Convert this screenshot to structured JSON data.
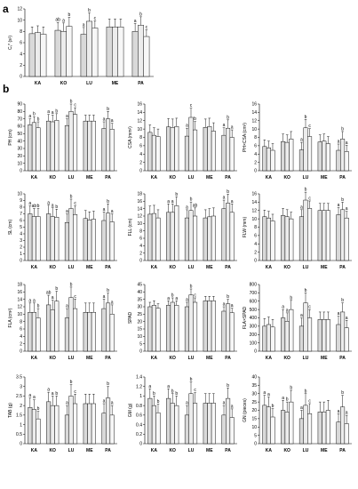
{
  "figure": {
    "panel_a_letter": "a",
    "panel_b_letter": "b"
  },
  "chart_data": [
    {
      "type": "bar",
      "ylabel": "Cᵥ* (s²)",
      "ylim": [
        0,
        12
      ],
      "yticks": [
        0,
        2,
        4,
        6,
        8,
        10,
        12
      ],
      "categories": [
        "KA",
        "KO",
        "LU",
        "ME",
        "PA"
      ],
      "values": [
        [
          7.6,
          7.8,
          7.5
        ],
        [
          8.2,
          8.0,
          8.9
        ],
        [
          7.5,
          9.8,
          8.6
        ],
        [
          8.8,
          8.8,
          8.8
        ],
        [
          8.0,
          9.1,
          7.1
        ]
      ],
      "errors": [
        [
          1.2,
          1.2,
          1.3
        ],
        [
          1.4,
          1.5,
          1.6
        ],
        [
          1.2,
          1.5,
          1.3
        ],
        [
          1.4,
          1.4,
          1.4
        ],
        [
          1.4,
          1.5,
          1.2
        ]
      ],
      "letters": [
        [
          "",
          "",
          ""
        ],
        [
          "ab",
          "a",
          "b"
        ],
        [
          "a",
          "b",
          "c"
        ],
        [
          "",
          "",
          ""
        ],
        [
          "a",
          "b",
          "c"
        ]
      ]
    },
    {
      "type": "bar",
      "ylabel": "PH (cm)",
      "ylim": [
        0,
        90
      ],
      "yticks": [
        0,
        10,
        20,
        30,
        40,
        50,
        60,
        70,
        80,
        90
      ],
      "categories": [
        "KA",
        "KO",
        "LU",
        "ME",
        "PA"
      ],
      "values": [
        [
          62,
          65,
          58
        ],
        [
          67,
          66,
          68
        ],
        [
          61,
          80,
          76
        ],
        [
          67,
          67,
          67
        ],
        [
          57,
          70,
          56
        ]
      ],
      "errors": [
        [
          8,
          8,
          8
        ],
        [
          9,
          9,
          9
        ],
        [
          9,
          10,
          9
        ],
        [
          8,
          8,
          8
        ],
        [
          9,
          10,
          8
        ]
      ],
      "letters": [
        [
          "a",
          "b",
          "b"
        ],
        [
          "a",
          "a",
          "b"
        ],
        [
          "a",
          "b",
          "c"
        ],
        [
          "",
          "",
          ""
        ],
        [
          "a",
          "b",
          "a"
        ]
      ]
    },
    {
      "type": "bar",
      "ylabel": "CSA (mm²)",
      "ylim": [
        0,
        16
      ],
      "yticks": [
        0,
        2,
        4,
        6,
        8,
        10,
        12,
        14,
        16
      ],
      "categories": [
        "KA",
        "KO",
        "LU",
        "ME",
        "PA"
      ],
      "values": [
        [
          9.2,
          8.5,
          8.2
        ],
        [
          10.5,
          10.4,
          10.6
        ],
        [
          8.3,
          12.8,
          9.8
        ],
        [
          10.4,
          10.6,
          9.5
        ],
        [
          8.5,
          10.2,
          8.0
        ]
      ],
      "errors": [
        [
          1.8,
          1.8,
          1.8
        ],
        [
          2.0,
          2.0,
          2.0
        ],
        [
          1.9,
          2.2,
          2.0
        ],
        [
          2.0,
          2.0,
          2.0
        ],
        [
          1.8,
          2.0,
          1.8
        ]
      ],
      "letters": [
        [
          "",
          "",
          ""
        ],
        [
          "",
          "",
          ""
        ],
        [
          "a",
          "c",
          "b"
        ],
        [
          "",
          "",
          ""
        ],
        [
          "a",
          "b",
          "a"
        ]
      ]
    },
    {
      "type": "bar",
      "ylabel": "PH×CSA (cm³)",
      "ylim": [
        0,
        16
      ],
      "yticks": [
        0,
        2,
        4,
        6,
        8,
        10,
        12,
        14,
        16
      ],
      "categories": [
        "KA",
        "KO",
        "LU",
        "ME",
        "PA"
      ],
      "values": [
        [
          5.8,
          5.5,
          4.9
        ],
        [
          7.0,
          6.8,
          7.6
        ],
        [
          5.0,
          10.3,
          8.2
        ],
        [
          6.9,
          7.1,
          6.5
        ],
        [
          4.9,
          7.6,
          4.6
        ]
      ],
      "errors": [
        [
          1.6,
          1.6,
          1.6
        ],
        [
          1.8,
          1.8,
          1.8
        ],
        [
          1.8,
          2.0,
          1.9
        ],
        [
          1.7,
          1.7,
          1.7
        ],
        [
          1.5,
          1.8,
          1.5
        ]
      ],
      "letters": [
        [
          "",
          "",
          ""
        ],
        [
          "",
          "",
          ""
        ],
        [
          "a",
          "b",
          "c"
        ],
        [
          "",
          "",
          ""
        ],
        [
          "a",
          "b",
          "a"
        ]
      ]
    },
    {
      "type": "bar",
      "ylabel": "SL (cm)",
      "ylim": [
        0,
        10
      ],
      "yticks": [
        0,
        1,
        2,
        3,
        4,
        5,
        6,
        7,
        8,
        9,
        10
      ],
      "categories": [
        "KA",
        "KO",
        "LU",
        "ME",
        "PA"
      ],
      "values": [
        [
          7.0,
          6.6,
          6.6
        ],
        [
          7.0,
          6.6,
          6.5
        ],
        [
          5.7,
          7.8,
          6.9
        ],
        [
          6.3,
          6.1,
          6.2
        ],
        [
          6.0,
          7.1,
          5.8
        ]
      ],
      "errors": [
        [
          1.2,
          1.2,
          1.2
        ],
        [
          1.3,
          1.3,
          1.2
        ],
        [
          1.3,
          1.4,
          1.3
        ],
        [
          1.2,
          1.2,
          1.2
        ],
        [
          1.3,
          1.4,
          1.2
        ]
      ],
      "letters": [
        [
          "a",
          "ab",
          "b"
        ],
        [
          "a",
          "a",
          "b"
        ],
        [
          "a",
          "b",
          "c"
        ],
        [
          "",
          "",
          ""
        ],
        [
          "a",
          "b",
          "a"
        ]
      ]
    },
    {
      "type": "bar",
      "ylabel": "FLL (cm)",
      "ylim": [
        0,
        18
      ],
      "yticks": [
        0,
        2,
        4,
        6,
        8,
        10,
        12,
        14,
        16,
        18
      ],
      "categories": [
        "KA",
        "KO",
        "LU",
        "ME",
        "PA"
      ],
      "values": [
        [
          12.5,
          12.7,
          11.5
        ],
        [
          13.0,
          13.0,
          14.8
        ],
        [
          11.5,
          13.5,
          12.0
        ],
        [
          11.5,
          11.8,
          12.0
        ],
        [
          14.0,
          15.5,
          13.0
        ]
      ],
      "errors": [
        [
          2.2,
          2.2,
          2.2
        ],
        [
          2.3,
          2.3,
          2.4
        ],
        [
          2.2,
          2.3,
          2.2
        ],
        [
          2.2,
          2.2,
          2.2
        ],
        [
          2.3,
          2.4,
          2.3
        ]
      ],
      "letters": [
        [
          "",
          "",
          ""
        ],
        [
          "a",
          "a",
          "b"
        ],
        [
          "a",
          "b",
          "ab"
        ],
        [
          "",
          "",
          ""
        ],
        [
          "a",
          "b",
          "a"
        ]
      ]
    },
    {
      "type": "bar",
      "ylabel": "FLW (mm)",
      "ylim": [
        0,
        16
      ],
      "yticks": [
        0,
        2,
        4,
        6,
        8,
        10,
        12,
        14,
        16
      ],
      "categories": [
        "KA",
        "KO",
        "LU",
        "ME",
        "PA"
      ],
      "values": [
        [
          10.5,
          10.2,
          9.5
        ],
        [
          10.8,
          10.5,
          10.0
        ],
        [
          10.5,
          14.5,
          12.5
        ],
        [
          12.0,
          12.0,
          12.0
        ],
        [
          11.0,
          12.2,
          10.2
        ]
      ],
      "errors": [
        [
          1.6,
          1.6,
          1.6
        ],
        [
          1.7,
          1.7,
          1.6
        ],
        [
          1.7,
          1.9,
          1.8
        ],
        [
          1.7,
          1.7,
          1.7
        ],
        [
          1.7,
          1.8,
          1.6
        ]
      ],
      "letters": [
        [
          "",
          "",
          ""
        ],
        [
          "",
          "",
          ""
        ],
        [
          "a",
          "b",
          "c"
        ],
        [
          "",
          "",
          ""
        ],
        [
          "a",
          "b",
          "a"
        ]
      ]
    },
    {
      "type": "bar",
      "ylabel": "FLA (cm²)",
      "ylim": [
        0,
        18
      ],
      "yticks": [
        0,
        2,
        4,
        6,
        8,
        10,
        12,
        14,
        16,
        18
      ],
      "categories": [
        "KA",
        "KO",
        "LU",
        "ME",
        "PA"
      ],
      "values": [
        [
          10.5,
          10.5,
          9.0
        ],
        [
          12.5,
          11.2,
          13.5
        ],
        [
          9.0,
          14.5,
          11.5
        ],
        [
          10.5,
          10.5,
          10.5
        ],
        [
          11.5,
          13.0,
          10.0
        ]
      ],
      "errors": [
        [
          2.5,
          2.5,
          2.5
        ],
        [
          2.6,
          2.6,
          2.7
        ],
        [
          2.5,
          2.8,
          2.6
        ],
        [
          2.5,
          2.5,
          2.5
        ],
        [
          2.6,
          2.7,
          2.5
        ]
      ],
      "letters": [
        [
          "a",
          "a",
          "b"
        ],
        [
          "ab",
          "a",
          "b"
        ],
        [
          "a",
          "b",
          "c"
        ],
        [
          "",
          "",
          ""
        ],
        [
          "a",
          "b",
          "a"
        ]
      ]
    },
    {
      "type": "bar",
      "ylabel": "SPAD",
      "ylim": [
        0,
        45
      ],
      "yticks": [
        0,
        5,
        10,
        15,
        20,
        25,
        30,
        35,
        40,
        45
      ],
      "categories": [
        "KA",
        "KO",
        "LU",
        "ME",
        "PA"
      ],
      "values": [
        [
          30,
          31,
          29
        ],
        [
          31,
          33,
          31
        ],
        [
          30,
          38,
          33
        ],
        [
          34,
          34,
          34
        ],
        [
          27,
          32,
          26
        ]
      ],
      "errors": [
        [
          3,
          3,
          3
        ],
        [
          3,
          3,
          3
        ],
        [
          3,
          4,
          3
        ],
        [
          3,
          3,
          3
        ],
        [
          3,
          3,
          3
        ]
      ],
      "letters": [
        [
          "",
          "",
          ""
        ],
        [
          "a",
          "b",
          "a"
        ],
        [
          "a",
          "b",
          "c"
        ],
        [
          "",
          "",
          ""
        ],
        [
          "a",
          "b",
          "a"
        ]
      ]
    },
    {
      "type": "bar",
      "ylabel": "FLA×SPAD",
      "ylim": [
        0,
        800
      ],
      "yticks": [
        0,
        100,
        200,
        300,
        400,
        500,
        600,
        700,
        800
      ],
      "categories": [
        "KA",
        "KO",
        "LU",
        "ME",
        "PA"
      ],
      "values": [
        [
          300,
          320,
          290
        ],
        [
          400,
          360,
          500
        ],
        [
          300,
          580,
          400
        ],
        [
          380,
          380,
          380
        ],
        [
          320,
          470,
          280
        ]
      ],
      "errors": [
        [
          90,
          90,
          90
        ],
        [
          100,
          100,
          110
        ],
        [
          100,
          120,
          100
        ],
        [
          90,
          90,
          90
        ],
        [
          100,
          110,
          90
        ]
      ],
      "letters": [
        [
          "",
          "",
          ""
        ],
        [
          "a",
          "a",
          "b"
        ],
        [
          "a",
          "b",
          "c"
        ],
        [
          "",
          "",
          ""
        ],
        [
          "a",
          "b",
          "a"
        ]
      ]
    },
    {
      "type": "bar",
      "ylabel": "TAB (g)",
      "ylim": [
        0,
        3.5
      ],
      "yticks": [
        0,
        0.5,
        1,
        1.5,
        2,
        2.5,
        3,
        3.5
      ],
      "categories": [
        "KA",
        "KO",
        "LU",
        "ME",
        "PA"
      ],
      "values": [
        [
          1.9,
          1.8,
          1.3
        ],
        [
          2.2,
          2.0,
          2.0
        ],
        [
          1.5,
          2.5,
          2.1
        ],
        [
          2.1,
          2.1,
          2.1
        ],
        [
          1.6,
          2.4,
          1.5
        ]
      ],
      "errors": [
        [
          0.5,
          0.5,
          0.4
        ],
        [
          0.5,
          0.5,
          0.5
        ],
        [
          0.5,
          0.6,
          0.5
        ],
        [
          0.5,
          0.5,
          0.5
        ],
        [
          0.5,
          0.6,
          0.5
        ]
      ],
      "letters": [
        [
          "a",
          "a",
          "b"
        ],
        [
          "a",
          "a",
          "b"
        ],
        [
          "a",
          "b",
          "c"
        ],
        [
          "",
          "",
          ""
        ],
        [
          "a",
          "b",
          "a"
        ]
      ]
    },
    {
      "type": "bar",
      "ylabel": "GM (g)",
      "ylim": [
        0,
        1.4
      ],
      "yticks": [
        0,
        0.2,
        0.4,
        0.6,
        0.8,
        1.0,
        1.2,
        1.4
      ],
      "categories": [
        "KA",
        "KO",
        "LU",
        "ME",
        "PA"
      ],
      "values": [
        [
          0.95,
          0.8,
          0.65
        ],
        [
          0.95,
          0.85,
          0.8
        ],
        [
          0.6,
          1.05,
          0.85
        ],
        [
          0.85,
          0.85,
          0.85
        ],
        [
          0.6,
          0.95,
          0.55
        ]
      ],
      "errors": [
        [
          0.2,
          0.2,
          0.18
        ],
        [
          0.2,
          0.2,
          0.2
        ],
        [
          0.2,
          0.25,
          0.22
        ],
        [
          0.2,
          0.2,
          0.2
        ],
        [
          0.2,
          0.22,
          0.18
        ]
      ],
      "letters": [
        [
          "a",
          "b",
          "b"
        ],
        [
          "a",
          "b",
          "b"
        ],
        [
          "a",
          "b",
          "c"
        ],
        [
          "",
          "",
          ""
        ],
        [
          "a",
          "b",
          "a"
        ]
      ]
    },
    {
      "type": "bar",
      "ylabel": "GN (pieces)",
      "ylim": [
        0,
        40
      ],
      "yticks": [
        0,
        5,
        10,
        15,
        20,
        25,
        30,
        35,
        40
      ],
      "categories": [
        "KA",
        "KO",
        "LU",
        "ME",
        "PA"
      ],
      "values": [
        [
          23,
          22,
          16
        ],
        [
          20,
          19,
          25
        ],
        [
          15,
          23,
          18
        ],
        [
          19,
          19,
          20
        ],
        [
          13,
          22,
          12
        ]
      ],
      "errors": [
        [
          6,
          6,
          5
        ],
        [
          6,
          6,
          7
        ],
        [
          5,
          7,
          6
        ],
        [
          6,
          6,
          6
        ],
        [
          5,
          7,
          5
        ]
      ],
      "letters": [
        [
          "a",
          "a",
          "b"
        ],
        [
          "a",
          "b",
          "b"
        ],
        [
          "a",
          "b",
          "c"
        ],
        [
          "",
          "",
          ""
        ],
        [
          "a",
          "b",
          "a"
        ]
      ]
    }
  ]
}
